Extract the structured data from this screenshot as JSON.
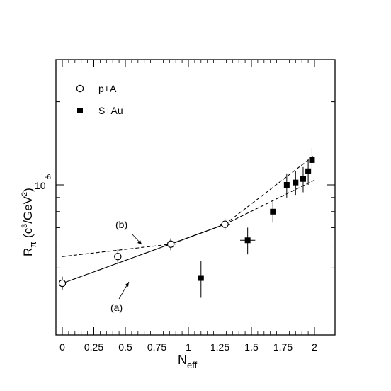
{
  "chart_data": {
    "type": "scatter",
    "title": "",
    "xlabel": {
      "base": "N",
      "sub": "eff"
    },
    "ylabel": {
      "base": "R",
      "sub": "π",
      "rest_open": " (c",
      "sup1": "3",
      "rest_mid": "/GeV",
      "sup2": "2",
      "rest_close": ")"
    },
    "xlim": [
      -0.05,
      2.15
    ],
    "y_scale": "log",
    "x_ticks": [
      "0",
      "0.25",
      "0.5",
      "0.75",
      "1",
      "1.25",
      "1.5",
      "1.75",
      "2"
    ],
    "y_tick_label": {
      "base": "10",
      "exp": "-6"
    },
    "grid": false,
    "legend_position": "top-left",
    "series": [
      {
        "name": "p+A",
        "marker": "open-circle",
        "points": [
          {
            "x": 0.0,
            "y": 0.44,
            "yerr": 0.025,
            "xerr": 0.0
          },
          {
            "x": 0.44,
            "y": 0.55,
            "yerr": 0.035,
            "xerr": 0.0
          },
          {
            "x": 0.86,
            "y": 0.61,
            "yerr": 0.03,
            "xerr": 0.04
          },
          {
            "x": 1.29,
            "y": 0.72,
            "yerr": 0.035,
            "xerr": 0.04
          }
        ]
      },
      {
        "name": "S+Au",
        "marker": "filled-square",
        "points": [
          {
            "x": 1.1,
            "y": 0.46,
            "yerr": 0.07,
            "xerr": 0.11
          },
          {
            "x": 1.47,
            "y": 0.63,
            "yerr": 0.07,
            "xerr": 0.06
          },
          {
            "x": 1.67,
            "y": 0.8,
            "yerr": 0.07,
            "xerr": 0.0
          },
          {
            "x": 1.78,
            "y": 1.0,
            "yerr": 0.1,
            "xerr": 0.0
          },
          {
            "x": 1.85,
            "y": 1.02,
            "yerr": 0.1,
            "xerr": 0.0
          },
          {
            "x": 1.91,
            "y": 1.05,
            "yerr": 0.11,
            "xerr": 0.0
          },
          {
            "x": 1.95,
            "y": 1.12,
            "yerr": 0.12,
            "xerr": 0.0
          },
          {
            "x": 1.98,
            "y": 1.23,
            "yerr": 0.13,
            "xerr": 0.0
          }
        ]
      }
    ],
    "curves": [
      {
        "label": "(a)",
        "x0": 0.0,
        "x1": 1.29,
        "y0": 0.44,
        "y1": 0.72,
        "style": "solid"
      },
      {
        "label": "(a)",
        "x0": 1.29,
        "x1": 2.0,
        "y0": 0.72,
        "y1": 1.28,
        "style": "dashed"
      },
      {
        "label": "(b)",
        "x0": 0.0,
        "x1": 0.86,
        "y0": 0.55,
        "y1": 0.61,
        "style": "dashed"
      },
      {
        "label": "(b)",
        "x0": 0.86,
        "x1": 1.29,
        "y0": 0.61,
        "y1": 0.72,
        "style": "solid"
      },
      {
        "label": "(b)",
        "x0": 1.29,
        "x1": 2.0,
        "y0": 0.72,
        "y1": 1.04,
        "style": "dashed"
      }
    ],
    "annotations": [
      {
        "text": "(a)"
      },
      {
        "text": "(b)"
      }
    ]
  }
}
